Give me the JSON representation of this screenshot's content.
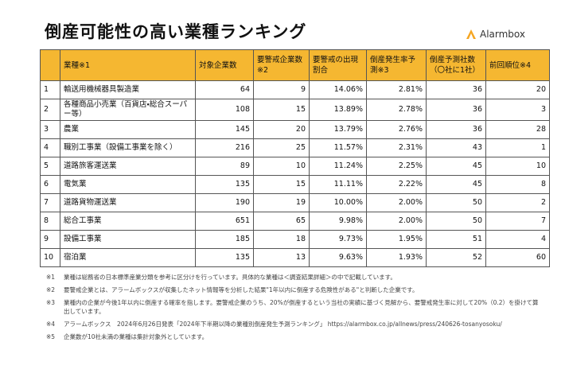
{
  "header": {
    "title": "倒産可能性の高い業種ランキング",
    "brand": "Alarmbox"
  },
  "table": {
    "columns": [
      "",
      "業種※1",
      "対象企業数",
      "要警戒企業数※2",
      "要警戒の出現割合",
      "倒産発生率予測※3",
      "倒産予測社数（〇社に1社）",
      "前回順位※4"
    ],
    "rows": [
      [
        1,
        "輸送用機械器具製造業",
        64,
        9,
        "14.06%",
        "2.81%",
        36,
        20
      ],
      [
        2,
        "各種商品小売業（百貨店・総合スーパー等）",
        108,
        15,
        "13.89%",
        "2.78%",
        36,
        3
      ],
      [
        3,
        "農業",
        145,
        20,
        "13.79%",
        "2.76%",
        36,
        28
      ],
      [
        4,
        "職別工事業（設備工事業を除く）",
        216,
        25,
        "11.57%",
        "2.31%",
        43,
        1
      ],
      [
        5,
        "道路旅客運送業",
        89,
        10,
        "11.24%",
        "2.25%",
        45,
        10
      ],
      [
        6,
        "電気業",
        135,
        15,
        "11.11%",
        "2.22%",
        45,
        8
      ],
      [
        7,
        "道路貨物運送業",
        190,
        19,
        "10.00%",
        "2.00%",
        50,
        2
      ],
      [
        8,
        "総合工事業",
        651,
        65,
        "9.98%",
        "2.00%",
        50,
        7
      ],
      [
        9,
        "設備工事業",
        185,
        18,
        "9.73%",
        "1.95%",
        51,
        4
      ],
      [
        10,
        "宿泊業",
        135,
        13,
        "9.63%",
        "1.93%",
        52,
        60
      ]
    ]
  },
  "notes": [
    {
      "mark": "※1",
      "text": "業種は総務省の日本標準産業分類を参考に区分けを行っています。具体的な業種は＜調査結果詳細＞の中で記載しています。"
    },
    {
      "mark": "※2",
      "text": "要警戒企業とは、アラームボックスが収集したネット情報等を分析した結果\"1年以内に倒産する危険性がある\"と判断した企業です。"
    },
    {
      "mark": "※3",
      "text": "業種内の企業が今後1年以内に倒産する確率を指します。要警戒企業のうち、20%が倒産するという当社の実績に基づく見解から、要警戒発生率に対して20%（0.2）を掛けて算出しています。"
    },
    {
      "mark": "※4",
      "text": "アラームボックス　2024年6月26日発表「2024年下半期以降の業種別倒産発生予測ランキング」 https://alarmbox.co.jp/allnews/press/240626-tosanyosoku/"
    },
    {
      "mark": "※5",
      "text": "企業数が10社未満の業種は集計対象外としています。"
    }
  ]
}
